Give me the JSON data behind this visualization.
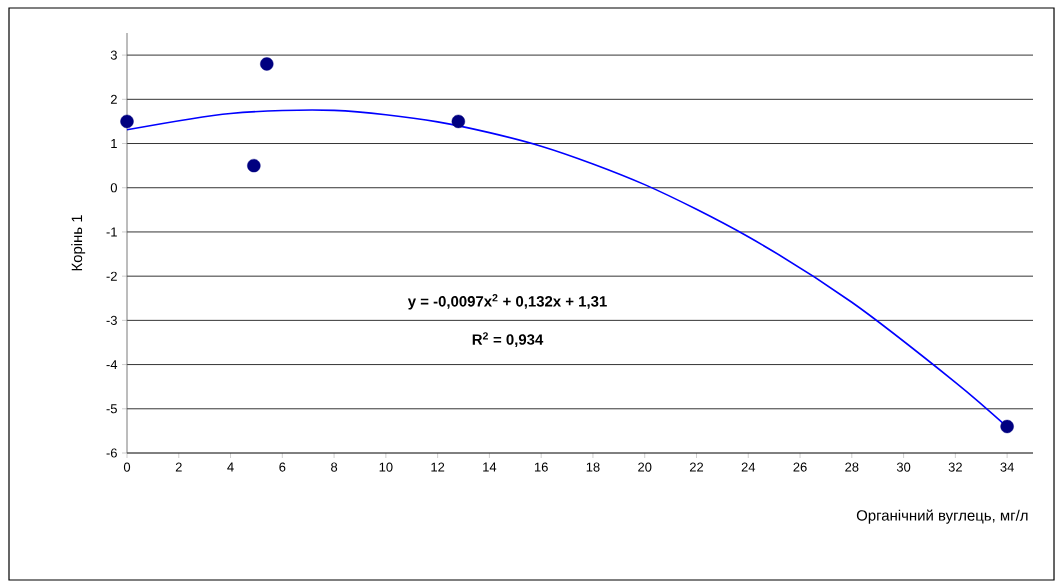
{
  "chart_data": {
    "type": "scatter",
    "xlabel": "Органічний вуглець, мг/л",
    "ylabel": "Корінь 1",
    "annotations": [
      "y = -0,0097x$^{2}$ + 0,132x + 1,31",
      "R$^{2}$ = 0,934"
    ],
    "xlim": [
      0,
      35
    ],
    "ylim": [
      -6,
      3.5
    ],
    "xticks": [
      0,
      2,
      4,
      6,
      8,
      10,
      12,
      14,
      16,
      18,
      20,
      22,
      24,
      26,
      28,
      30,
      32,
      34
    ],
    "yticks": [
      -6,
      -5,
      -4,
      -3,
      -2,
      -1,
      0,
      1,
      2,
      3
    ],
    "grid": "y",
    "series": [
      {
        "color": "#000080",
        "marker": "circle",
        "x": [
          0,
          4.9,
          5.4,
          12.8,
          34
        ],
        "values": [
          1.5,
          0.5,
          2.8,
          1.5,
          -5.4
        ]
      },
      {
        "type": "line",
        "color": "#0000ff",
        "marker": "none",
        "line_style": "solid",
        "x": [
          0,
          4,
          8,
          12,
          16,
          20,
          24,
          28,
          32,
          34
        ],
        "values": [
          1.31,
          1.68,
          1.75,
          1.49,
          0.94,
          0.07,
          -1.11,
          -2.59,
          -4.4,
          -5.41
        ]
      }
    ]
  }
}
